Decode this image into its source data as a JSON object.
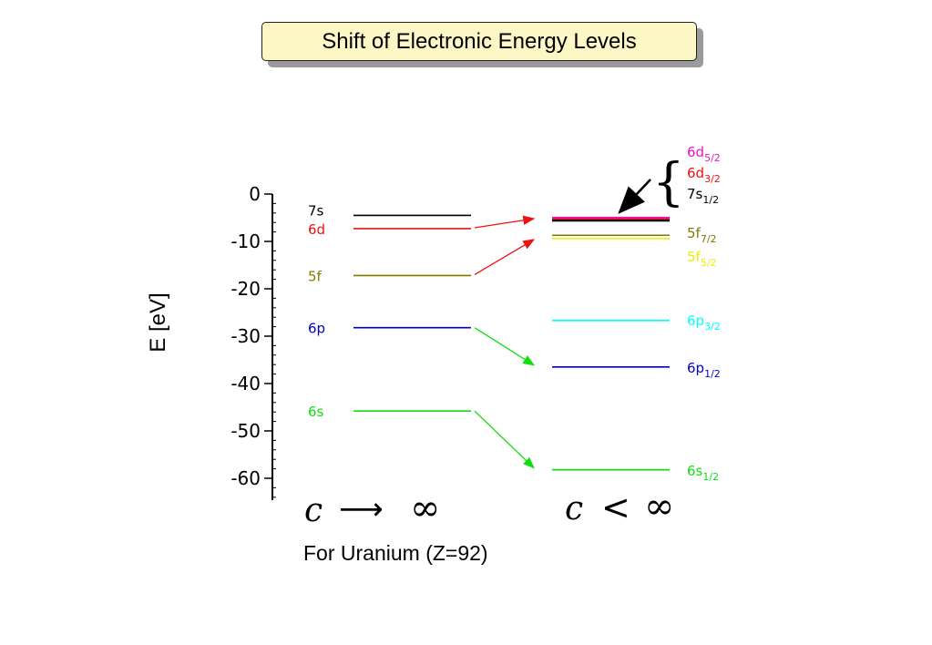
{
  "title": "Shift of Electronic Energy Levels",
  "y_axis": {
    "label": "E [eV]",
    "ticks": [
      0,
      -10,
      -20,
      -30,
      -40,
      -50,
      -60
    ],
    "range": [
      -64,
      2
    ]
  },
  "caption": "For Uranium (Z=92)",
  "regimes": {
    "nonrelativistic": "c",
    "relativistic": "c"
  },
  "symbols": {
    "arrow": "⟶",
    "less_than": "<",
    "infinity": "∞",
    "brace": "{"
  },
  "left_levels": [
    {
      "label": "7s",
      "energy": -4.5,
      "color": "#000000"
    },
    {
      "label": "6d",
      "energy": -7.3,
      "color": "#ee1111"
    },
    {
      "label": "5f",
      "energy": -17.2,
      "color": "#7f7a00"
    },
    {
      "label": "6p",
      "energy": -28.2,
      "color": "#0000cc"
    },
    {
      "label": "6s",
      "energy": -45.8,
      "color": "#11dd11"
    }
  ],
  "right_levels": [
    {
      "label": "6d",
      "sub": "5/2",
      "energy": -5.0,
      "color": "#ee11cc"
    },
    {
      "label": "6d",
      "sub": "3/2",
      "energy": -5.3,
      "color": "#ee1111"
    },
    {
      "label": "7s",
      "sub": "1/2",
      "energy": -5.6,
      "color": "#000000"
    },
    {
      "label": "5f",
      "sub": "7/2",
      "energy": -8.7,
      "color": "#7f7a00"
    },
    {
      "label": "5f",
      "sub": "5/2",
      "energy": -9.4,
      "color": "#eeee00"
    },
    {
      "label": "6p",
      "sub": "3/2",
      "energy": -26.7,
      "color": "#00ffff"
    },
    {
      "label": "6p",
      "sub": "1/2",
      "energy": -36.5,
      "color": "#0000cc"
    },
    {
      "label": "6s",
      "sub": "1/2",
      "energy": -58.2,
      "color": "#11dd11"
    }
  ],
  "shifts": [
    {
      "from": -7.3,
      "to": -5.0,
      "color": "#ee1111"
    },
    {
      "from": -17.2,
      "to": -9.4,
      "color": "#ee1111"
    },
    {
      "from": -28.2,
      "to": -36.5,
      "color": "#11dd11"
    },
    {
      "from": -45.8,
      "to": -58.2,
      "color": "#11dd11"
    }
  ]
}
